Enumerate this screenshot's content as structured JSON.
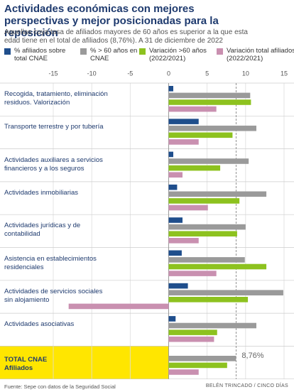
{
  "chart_data": {
    "type": "bar",
    "orientation": "horizontal",
    "title": "Actividades económicas con mejores perspectivas y mejor posicionadas para la reposición",
    "subtitle": "Aquellas cuya tasa de afiliados mayores de 60 años es superior a la que esta edad tiene en el total de afiliados (8,76%). A 31 de diciembre de 2022",
    "categories": [
      "Recogida, tratamiento, eliminación residuos. Valorización",
      "Transporte terrestre y por tubería",
      "Actividades auxiliares a servicios financieros y a los seguros",
      "Actividades inmobiliarias",
      "Actividades jurídicas y de contabilidad",
      "Asistencia en establecimientos residenciales",
      "Actividades de servicios sociales sin alojamiento",
      "Actividades asociativas",
      "TOTAL CNAE Afiliados"
    ],
    "series": [
      {
        "name": "% afiliados sobre total CNAE",
        "color": "#1f4e8c",
        "values": [
          0.6,
          3.9,
          0.6,
          1.1,
          1.8,
          1.7,
          2.5,
          0.9,
          null
        ]
      },
      {
        "name": "% > 60 años en CNAE",
        "color": "#9a9a9a",
        "values": [
          10.6,
          11.4,
          10.4,
          12.7,
          10.0,
          9.9,
          14.9,
          11.4,
          8.76
        ],
        "value_labels": [
          null,
          null,
          null,
          null,
          null,
          null,
          null,
          null,
          "8,76%"
        ]
      },
      {
        "name": "Variación >60 años (2022/2021)",
        "color": "#8dc21f",
        "values": [
          10.7,
          8.3,
          6.7,
          9.2,
          8.9,
          12.7,
          10.3,
          6.3,
          7.6
        ]
      },
      {
        "name": "Variación total afiliados (2022/2021)",
        "color": "#c990b0",
        "values": [
          6.2,
          3.9,
          1.8,
          5.1,
          3.9,
          6.2,
          -13.0,
          5.9,
          3.9
        ]
      }
    ],
    "reference_value": 8.76,
    "xlim": [
      -15,
      15
    ],
    "xticks": [
      -15,
      -10,
      -5,
      0,
      5,
      10,
      15
    ],
    "grid": true,
    "highlight_color": "#ffe600",
    "source": "Fuente: Sepe con datos de la Seguridad Social",
    "credit": "BELÉN TRINCADO / CINCO DÍAS"
  }
}
